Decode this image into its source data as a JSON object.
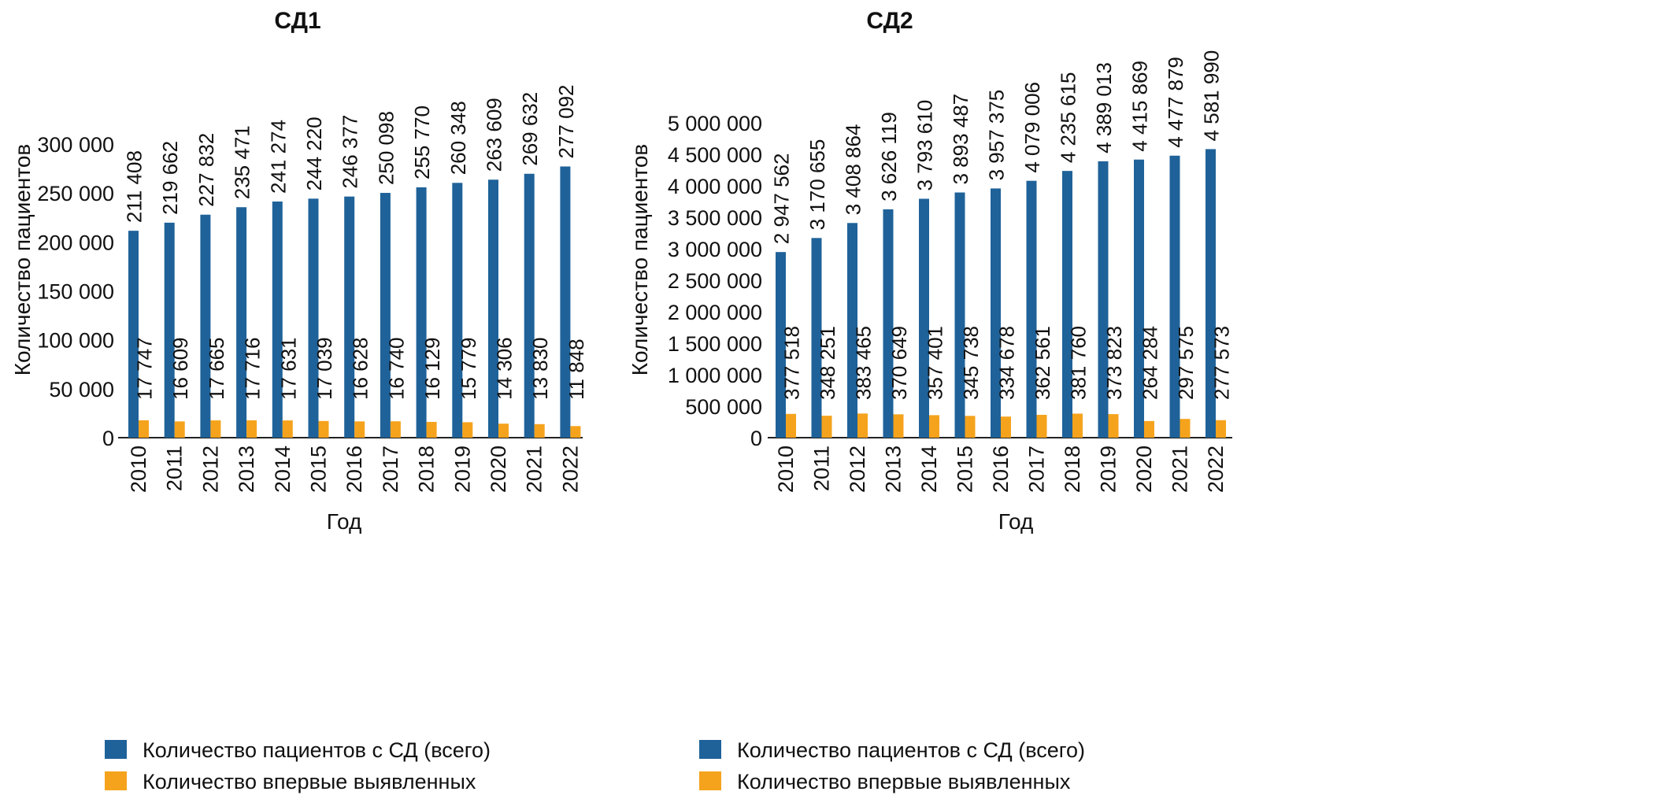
{
  "chart_data": [
    {
      "type": "bar",
      "title": "СД1",
      "xlabel": "Год",
      "ylabel": "Количество пациентов",
      "ylim": [
        0,
        300000
      ],
      "yticks": [
        "0",
        "50 000",
        "100 000",
        "150 000",
        "200 000",
        "250 000",
        "300 000"
      ],
      "ytick_values": [
        0,
        50000,
        100000,
        150000,
        200000,
        250000,
        300000
      ],
      "categories": [
        "2010",
        "2011",
        "2012",
        "2013",
        "2014",
        "2015",
        "2016",
        "2017",
        "2018",
        "2019",
        "2020",
        "2021",
        "2022"
      ],
      "series": [
        {
          "name": "Количество пациентов с СД (всего)",
          "color": "#1f6299",
          "values": [
            211408,
            219662,
            227832,
            235471,
            241274,
            244220,
            246377,
            250098,
            255770,
            260348,
            263609,
            269632,
            277092
          ],
          "labels": [
            "211 408",
            "219 662",
            "227 832",
            "235 471",
            "241 274",
            "244 220",
            "246 377",
            "250 098",
            "255 770",
            "260 348",
            "263 609",
            "269 632",
            "277 092"
          ]
        },
        {
          "name": "Количество впервые выявленных",
          "color": "#f5a31d",
          "values": [
            17747,
            16609,
            17665,
            17716,
            17631,
            17039,
            16628,
            16740,
            16129,
            15779,
            14306,
            13830,
            11848
          ],
          "labels": [
            "17 747",
            "16 609",
            "17 665",
            "17 716",
            "17 631",
            "17 039",
            "16 628",
            "16 740",
            "16 129",
            "15 779",
            "14 306",
            "13 830",
            "11 848"
          ]
        }
      ],
      "grid": false,
      "legend_position": "bottom"
    },
    {
      "type": "bar",
      "title": "СД2",
      "xlabel": "Год",
      "ylabel": "Количество пациентов",
      "ylim": [
        0,
        5000000
      ],
      "yticks": [
        "0",
        "500 000",
        "1 000 000",
        "1 500 000",
        "2 000 000",
        "2 500 000",
        "3 000 000",
        "3 500 000",
        "4 000 000",
        "4 500 000",
        "5 000 000"
      ],
      "ytick_values": [
        0,
        500000,
        1000000,
        1500000,
        2000000,
        2500000,
        3000000,
        3500000,
        4000000,
        4500000,
        5000000
      ],
      "categories": [
        "2010",
        "2011",
        "2012",
        "2013",
        "2014",
        "2015",
        "2016",
        "2017",
        "2018",
        "2019",
        "2020",
        "2021",
        "2022"
      ],
      "series": [
        {
          "name": "Количество пациентов с СД (всего)",
          "color": "#1f6299",
          "values": [
            2947562,
            3170655,
            3408864,
            3626119,
            3793610,
            3893487,
            3957375,
            4079006,
            4235615,
            4389013,
            4415869,
            4477879,
            4581990
          ],
          "labels": [
            "2 947 562",
            "3 170 655",
            "3 408 864",
            "3 626 119",
            "3 793 610",
            "3 893 487",
            "3 957 375",
            "4 079 006",
            "4 235 615",
            "4 389 013",
            "4 415 869",
            "4 477 879",
            "4 581 990"
          ]
        },
        {
          "name": "Количество впервые выявленных",
          "color": "#f5a31d",
          "values": [
            377518,
            348251,
            383465,
            370649,
            357401,
            345738,
            334678,
            362561,
            381760,
            373823,
            264284,
            297575,
            277573
          ],
          "labels": [
            "377 518",
            "348 251",
            "383 465",
            "370 649",
            "357 401",
            "345 738",
            "334 678",
            "362 561",
            "381 760",
            "373 823",
            "264 284",
            "297 575",
            "277 573"
          ]
        }
      ],
      "grid": false,
      "legend_position": "bottom"
    }
  ]
}
